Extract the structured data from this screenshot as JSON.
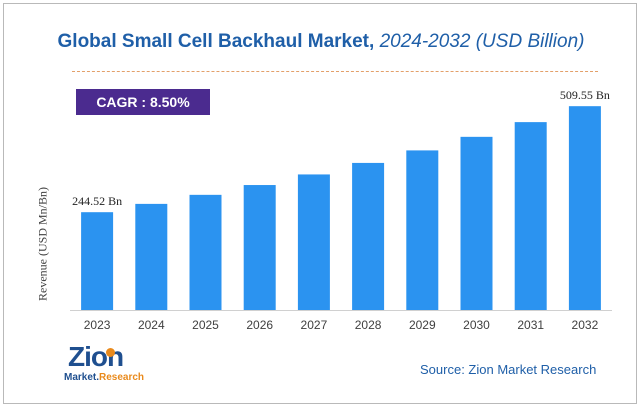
{
  "title": {
    "main": "Global Small Cell Backhaul Market,",
    "sub": "2024-2032 (USD Billion)"
  },
  "cagr_label": "CAGR : 8.50%",
  "source": "Source: Zion Market Research",
  "logo": {
    "main": "Zion",
    "sub_left": "Market.",
    "sub_right": "Research"
  },
  "colors": {
    "bar": "#2b93f0",
    "title": "#1f5fa8",
    "cagr_bg": "#4b2b8f",
    "separator": "#e3a06a"
  },
  "chart_data": {
    "type": "bar",
    "title": "Global Small Cell Backhaul Market, 2024-2032 (USD Billion)",
    "xlabel": "",
    "ylabel": "Revenue (USD Mn/Bn)",
    "categories": [
      "2023",
      "2024",
      "2025",
      "2026",
      "2027",
      "2028",
      "2029",
      "2030",
      "2031",
      "2032"
    ],
    "values": [
      244.52,
      265.3,
      287.9,
      312.4,
      338.9,
      367.7,
      399.0,
      432.9,
      469.7,
      509.55
    ],
    "value_labels": [
      "244.52 Bn",
      "",
      "",
      "",
      "",
      "",
      "",
      "",
      "",
      "509.55 Bn"
    ],
    "ylim": [
      0,
      600
    ],
    "grid": false,
    "legend": "none"
  }
}
